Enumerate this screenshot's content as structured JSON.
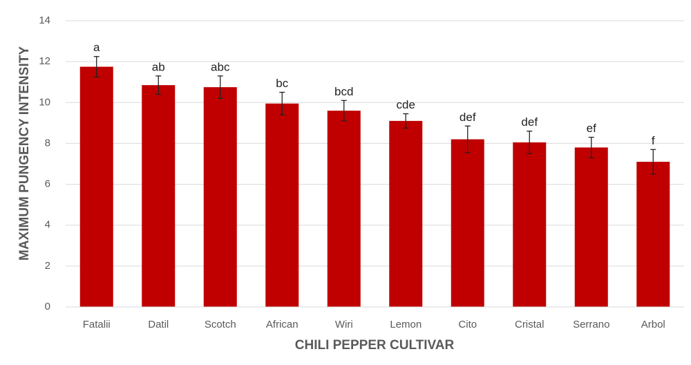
{
  "chart_data": {
    "type": "bar",
    "x_label": "CHILI PEPPER CULTIVAR",
    "y_label": "MAXIMUM PUNGENCY INTENSITY",
    "categories": [
      "Fatalii",
      "Datil",
      "Scotch",
      "African",
      "Wiri",
      "Lemon",
      "Cito",
      "Cristal",
      "Serrano",
      "Arbol"
    ],
    "values": [
      11.75,
      10.85,
      10.75,
      9.95,
      9.6,
      9.1,
      8.2,
      8.05,
      7.8,
      7.1
    ],
    "errors": [
      0.5,
      0.45,
      0.55,
      0.55,
      0.5,
      0.35,
      0.65,
      0.55,
      0.5,
      0.6
    ],
    "group_letters": [
      "a",
      "ab",
      "abc",
      "bc",
      "bcd",
      "cde",
      "def",
      "def",
      "ef",
      "f"
    ],
    "color": "#c00000",
    "ylim": [
      0,
      14
    ],
    "yticks": [
      0,
      2,
      4,
      6,
      8,
      10,
      12,
      14
    ],
    "grid": true
  }
}
